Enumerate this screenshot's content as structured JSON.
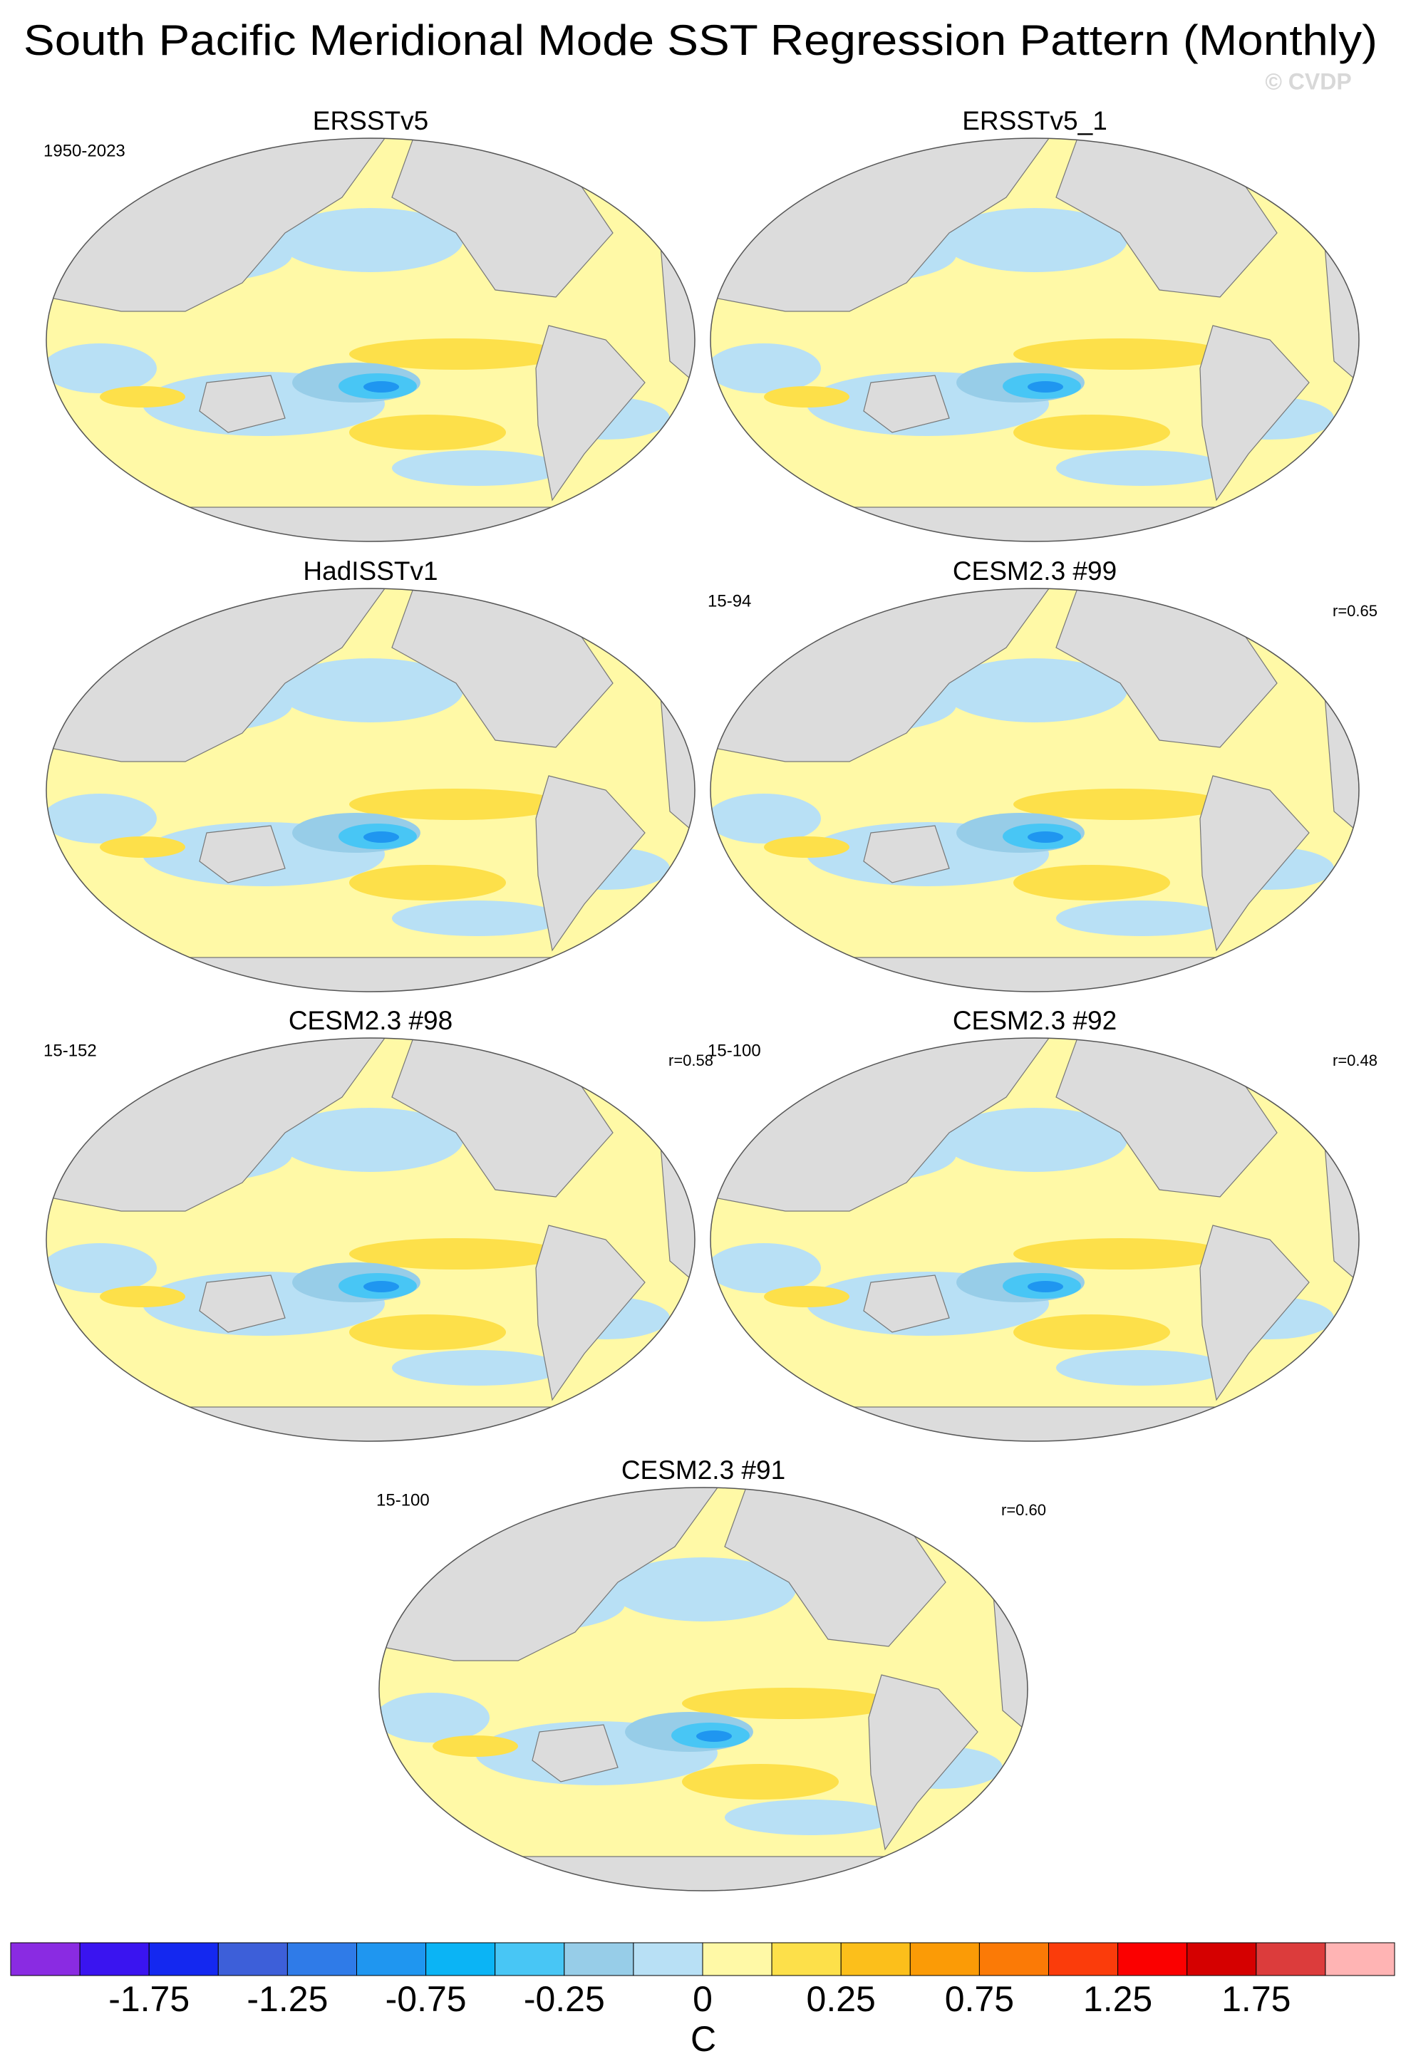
{
  "chart_data": {
    "type": "map-panels",
    "title": "South Pacific Meridional Mode SST Regression Pattern (Monthly)",
    "watermark": "© CVDP",
    "panels": [
      {
        "title": "ERSSTv5",
        "left_label": "1950-2023"
      },
      {
        "title": "ERSSTv5_1"
      },
      {
        "title": "HadISSTv1"
      },
      {
        "title": "CESM2.3 #99",
        "left_label": "15-94",
        "right_label": "r=0.65"
      },
      {
        "title": "CESM2.3 #98",
        "left_label": "15-152",
        "right_label": "r=0.58"
      },
      {
        "title": "CESM2.3 #92",
        "left_label": "15-100",
        "right_label": "r=0.48"
      },
      {
        "title": "CESM2.3 #91",
        "left_label": "15-100",
        "right_label": "r=0.60"
      }
    ],
    "colorbar": {
      "colors": [
        "#8a2be2",
        "#3a14f0",
        "#1428f0",
        "#3d5fd9",
        "#2f7be8",
        "#1f96f0",
        "#0bb4f5",
        "#48c6f5",
        "#97cde8",
        "#b8e0f5",
        "#fff9a6",
        "#fde04a",
        "#fcbf1b",
        "#fb9b06",
        "#fb7a06",
        "#fb3c0b",
        "#fb0000",
        "#d50000",
        "#dc3c3c",
        "#ffb4b4"
      ],
      "ticks": [
        -1.75,
        -1.25,
        -0.75,
        -0.25,
        0,
        0.25,
        0.75,
        1.25,
        1.75
      ],
      "label": "C"
    }
  }
}
